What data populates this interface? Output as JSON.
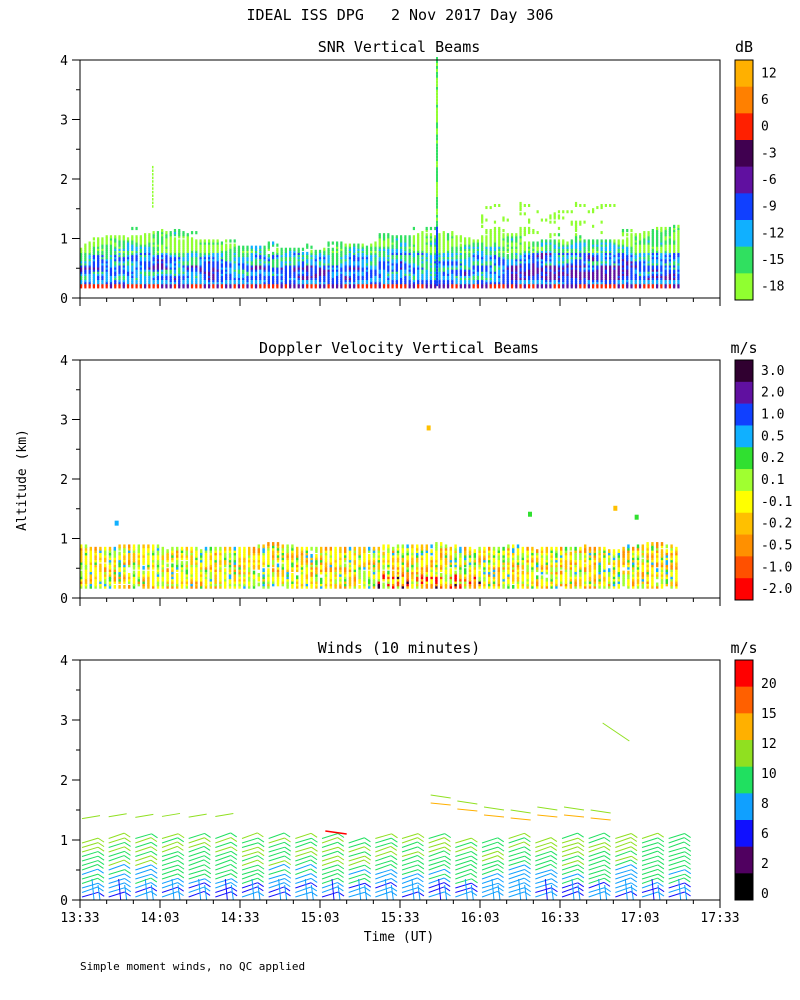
{
  "figure": {
    "title": "IDEAL ISS DPG   2 Nov 2017 Day 306",
    "y_axis_label": "Altitude (km)",
    "x_axis_label": "Time (UT)",
    "footnote": "Simple moment winds, no QC applied"
  },
  "chart_data": [
    {
      "type": "heatmap",
      "title": "SNR Vertical Beams",
      "units": "dB",
      "x_ticks": [
        "13:33",
        "14:03",
        "14:33",
        "15:03",
        "15:33",
        "16:03",
        "16:33",
        "17:03",
        "17:33"
      ],
      "x_range_minutes": [
        0,
        240
      ],
      "y_ticks": [
        "0",
        "1",
        "2",
        "3",
        "4"
      ],
      "y_range_km": [
        0,
        4
      ],
      "colorbar": {
        "labels": [
          "12",
          "6",
          "0",
          "-3",
          "-6",
          "-9",
          "-12",
          "-15",
          "-18"
        ],
        "colors": [
          "#ffb000",
          "#ff8000",
          "#ff2000",
          "#400050",
          "#6010a0",
          "#1040ff",
          "#10b0ff",
          "#30e060",
          "#90ff30"
        ]
      },
      "data_extent_minutes": [
        0,
        224
      ]
    },
    {
      "type": "heatmap",
      "title": "Doppler Velocity Vertical Beams",
      "units": "m/s",
      "x_range_minutes": [
        0,
        240
      ],
      "y_ticks": [
        "0",
        "1",
        "2",
        "3",
        "4"
      ],
      "y_range_km": [
        0,
        4
      ],
      "colorbar": {
        "labels": [
          "3.0",
          "2.0",
          "1.0",
          "0.5",
          "0.2",
          "0.1",
          "-0.1",
          "-0.2",
          "-0.5",
          "-1.0",
          "-2.0"
        ],
        "colors": [
          "#300030",
          "#6010a0",
          "#1040ff",
          "#10b0ff",
          "#30e030",
          "#a0ff30",
          "#ffff00",
          "#ffc000",
          "#ff9000",
          "#ff5000",
          "#ff0000"
        ]
      },
      "data_extent_minutes": [
        0,
        224
      ]
    },
    {
      "type": "wind_barbs",
      "title": "Winds (10 minutes)",
      "units": "m/s",
      "x_ticks": [
        "13:33",
        "14:03",
        "14:33",
        "15:03",
        "15:33",
        "16:03",
        "16:33",
        "17:03",
        "17:33"
      ],
      "x_range_minutes": [
        0,
        240
      ],
      "y_ticks": [
        "0",
        "1",
        "2",
        "3",
        "4"
      ],
      "y_range_km": [
        0,
        4
      ],
      "colorbar": {
        "labels": [
          "20",
          "15",
          "12",
          "10",
          "8",
          "6",
          "2",
          "0"
        ],
        "colors": [
          "#ff0000",
          "#ff6000",
          "#ffb000",
          "#90e020",
          "#20e060",
          "#10a0ff",
          "#1010ff",
          "#500060",
          "#000000"
        ]
      },
      "profile_times_minutes": [
        0,
        10,
        20,
        30,
        40,
        50,
        60,
        70,
        80,
        90,
        100,
        110,
        120,
        130,
        140,
        150,
        160,
        170,
        180,
        190,
        200,
        210,
        220
      ]
    }
  ]
}
